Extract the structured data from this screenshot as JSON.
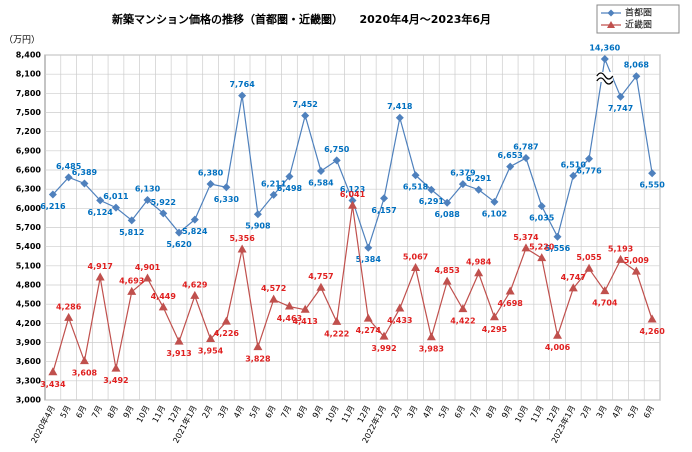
{
  "chart_data": {
    "type": "line",
    "title": "新築マンション価格の推移（首都圏・近畿圏）　　2020年4月～2023年6月",
    "y_label": "（万円）",
    "categories": [
      "2020年4月",
      "5月",
      "6月",
      "7月",
      "8月",
      "9月",
      "10月",
      "11月",
      "12月",
      "2021年1月",
      "2月",
      "3月",
      "4月",
      "5月",
      "6月",
      "7月",
      "8月",
      "9月",
      "10月",
      "11月",
      "12月",
      "2022年1月",
      "2月",
      "3月",
      "4月",
      "5月",
      "6月",
      "7月",
      "8月",
      "9月",
      "10月",
      "11月",
      "12月",
      "2023年1月",
      "2月",
      "3月",
      "4月",
      "5月",
      "6月"
    ],
    "series": [
      {
        "name": "首都圏",
        "color": "#4f81bd",
        "label_color": "#0070c0",
        "marker": "diamond",
        "values": [
          6216,
          6485,
          6389,
          6124,
          6011,
          5812,
          6130,
          5922,
          5620,
          5824,
          6380,
          6330,
          7764,
          5908,
          6211,
          6498,
          7452,
          6584,
          6750,
          6123,
          5384,
          6157,
          7418,
          6518,
          6291,
          6088,
          6379,
          6291,
          6102,
          6653,
          6787,
          6035,
          5556,
          6510,
          6776,
          14360,
          7747,
          8068,
          6550
        ],
        "value_labels": [
          "6,216",
          "6,485",
          "6,389",
          "6,124",
          "6,011",
          "5,812",
          "6,130",
          "5,922",
          "5,620",
          "5,824",
          "6,380",
          "6,330",
          "7,764",
          "5,908",
          "6,211",
          "6,498",
          "7,452",
          "6,584",
          "6,750",
          "6,123",
          "5,384",
          "6,157",
          "7,418",
          "6,518",
          "6,291",
          "6,088",
          "6,379",
          "6,291",
          "6,102",
          "6,653",
          "6,787",
          "6,035",
          "5,556",
          "6,510",
          "6,776",
          "14,360",
          "7,747",
          "8,068",
          "6,550"
        ]
      },
      {
        "name": "近畿圏",
        "color": "#c0504d",
        "label_color": "#e02020",
        "marker": "triangle",
        "values": [
          3434,
          4286,
          3608,
          4917,
          3492,
          4693,
          4901,
          4449,
          3913,
          4629,
          3954,
          4226,
          5356,
          3828,
          4572,
          4463,
          4413,
          4757,
          4222,
          6041,
          4274,
          3992,
          4433,
          5067,
          3983,
          4853,
          4422,
          4984,
          4295,
          4698,
          5374,
          5220,
          4006,
          4747,
          5055,
          4704,
          5193,
          5009,
          4260
        ],
        "value_labels": [
          "3,434",
          "4,286",
          "3,608",
          "4,917",
          "3,492",
          "4,693",
          "4,901",
          "4,449",
          "3,913",
          "4,629",
          "3,954",
          "4,226",
          "5,356",
          "3,828",
          "4,572",
          "4,463",
          "4,413",
          "4,757",
          "4,222",
          "6,041",
          "4,274",
          "3,992",
          "4,433",
          "5,067",
          "3,983",
          "4,853",
          "4,422",
          "4,984",
          "4,295",
          "4,698",
          "5,374",
          "5,220",
          "4,006",
          "4,747",
          "5,055",
          "4,704",
          "5,193",
          "5,009",
          "4,260"
        ]
      }
    ],
    "ylim": [
      3000,
      8400
    ],
    "yticks": [
      {
        "value": 3000,
        "label": "3,000"
      },
      {
        "value": 3300,
        "label": "3,300"
      },
      {
        "value": 3600,
        "label": "3,600"
      },
      {
        "value": 3900,
        "label": "3,900"
      },
      {
        "value": 4200,
        "label": "4,200"
      },
      {
        "value": 4500,
        "label": "4,500"
      },
      {
        "value": 4800,
        "label": "4,800"
      },
      {
        "value": 5100,
        "label": "5,100"
      },
      {
        "value": 5400,
        "label": "5,400"
      },
      {
        "value": 5700,
        "label": "5,700"
      },
      {
        "value": 6000,
        "label": "6,000"
      },
      {
        "value": 6300,
        "label": "6,300"
      },
      {
        "value": 6600,
        "label": "6,600"
      },
      {
        "value": 6900,
        "label": "6,900"
      },
      {
        "value": 7200,
        "label": "7,200"
      },
      {
        "value": 7500,
        "label": "7,500"
      },
      {
        "value": 7800,
        "label": "7,800"
      },
      {
        "value": 8100,
        "label": "8,100"
      },
      {
        "value": 8400,
        "label": "8,400"
      }
    ],
    "grid": true,
    "legend": "top-right"
  }
}
